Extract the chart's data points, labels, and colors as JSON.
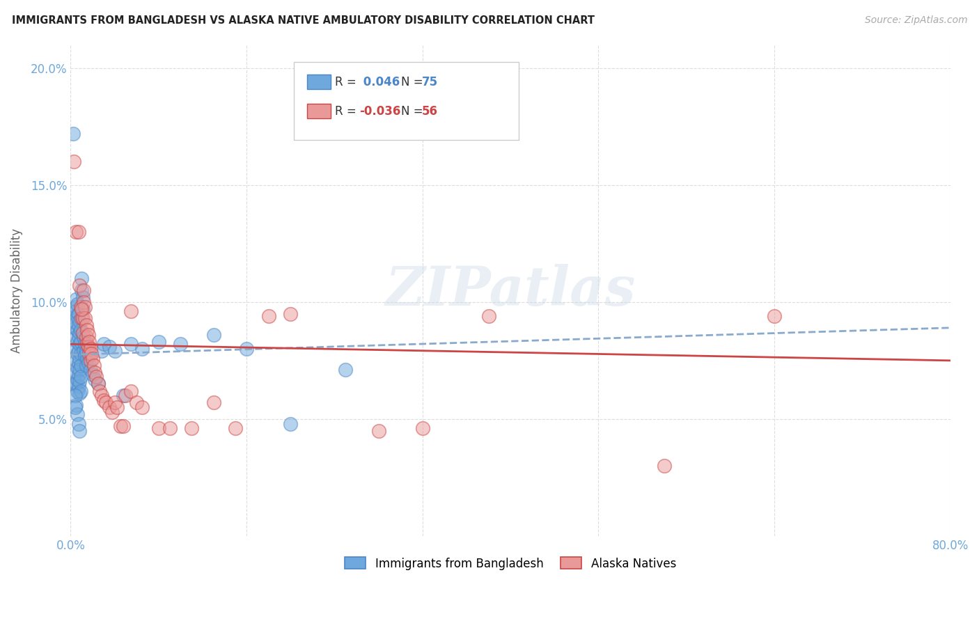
{
  "title": "IMMIGRANTS FROM BANGLADESH VS ALASKA NATIVE AMBULATORY DISABILITY CORRELATION CHART",
  "source": "Source: ZipAtlas.com",
  "ylabel": "Ambulatory Disability",
  "xlim": [
    0.0,
    0.8
  ],
  "ylim": [
    0.0,
    0.21
  ],
  "yticks": [
    0.05,
    0.1,
    0.15,
    0.2
  ],
  "ytick_labels": [
    "5.0%",
    "10.0%",
    "15.0%",
    "20.0%"
  ],
  "xticks": [
    0.0,
    0.16,
    0.32,
    0.48,
    0.64,
    0.8
  ],
  "xtick_labels": [
    "0.0%",
    "",
    "",
    "",
    "",
    "80.0%"
  ],
  "grid_color": "#dddddd",
  "watermark": "ZIPatlas",
  "blue_color": "#6fa8dc",
  "pink_color": "#ea9999",
  "blue_edge_color": "#4a86c8",
  "pink_edge_color": "#cc4444",
  "blue_line_color": "#4a86c8",
  "pink_line_color": "#cc4444",
  "blue_dash_color": "#88aacc",
  "title_color": "#222222",
  "source_color": "#aaaaaa",
  "axis_tick_color": "#6fa8dc",
  "blue_trend": [
    0.0,
    0.0775,
    0.8,
    0.089
  ],
  "pink_trend": [
    0.0,
    0.082,
    0.8,
    0.075
  ],
  "blue_scatter": [
    [
      0.002,
      0.172
    ],
    [
      0.003,
      0.065
    ],
    [
      0.004,
      0.098
    ],
    [
      0.004,
      0.094
    ],
    [
      0.004,
      0.089
    ],
    [
      0.005,
      0.101
    ],
    [
      0.005,
      0.096
    ],
    [
      0.005,
      0.091
    ],
    [
      0.005,
      0.085
    ],
    [
      0.005,
      0.08
    ],
    [
      0.005,
      0.075
    ],
    [
      0.005,
      0.07
    ],
    [
      0.005,
      0.065
    ],
    [
      0.006,
      0.099
    ],
    [
      0.006,
      0.094
    ],
    [
      0.006,
      0.088
    ],
    [
      0.006,
      0.083
    ],
    [
      0.006,
      0.078
    ],
    [
      0.006,
      0.072
    ],
    [
      0.006,
      0.067
    ],
    [
      0.006,
      0.062
    ],
    [
      0.007,
      0.095
    ],
    [
      0.007,
      0.09
    ],
    [
      0.007,
      0.085
    ],
    [
      0.007,
      0.079
    ],
    [
      0.007,
      0.074
    ],
    [
      0.007,
      0.069
    ],
    [
      0.007,
      0.064
    ],
    [
      0.008,
      0.092
    ],
    [
      0.008,
      0.087
    ],
    [
      0.008,
      0.082
    ],
    [
      0.008,
      0.076
    ],
    [
      0.008,
      0.071
    ],
    [
      0.008,
      0.066
    ],
    [
      0.008,
      0.061
    ],
    [
      0.009,
      0.088
    ],
    [
      0.009,
      0.083
    ],
    [
      0.009,
      0.078
    ],
    [
      0.009,
      0.073
    ],
    [
      0.009,
      0.068
    ],
    [
      0.009,
      0.062
    ],
    [
      0.01,
      0.11
    ],
    [
      0.01,
      0.105
    ],
    [
      0.011,
      0.102
    ],
    [
      0.011,
      0.097
    ],
    [
      0.012,
      0.085
    ],
    [
      0.012,
      0.079
    ],
    [
      0.013,
      0.082
    ],
    [
      0.013,
      0.077
    ],
    [
      0.014,
      0.079
    ],
    [
      0.014,
      0.073
    ],
    [
      0.015,
      0.076
    ],
    [
      0.016,
      0.074
    ],
    [
      0.018,
      0.071
    ],
    [
      0.02,
      0.069
    ],
    [
      0.022,
      0.067
    ],
    [
      0.025,
      0.065
    ],
    [
      0.028,
      0.079
    ],
    [
      0.03,
      0.082
    ],
    [
      0.035,
      0.081
    ],
    [
      0.04,
      0.079
    ],
    [
      0.048,
      0.06
    ],
    [
      0.055,
      0.082
    ],
    [
      0.065,
      0.08
    ],
    [
      0.08,
      0.083
    ],
    [
      0.1,
      0.082
    ],
    [
      0.13,
      0.086
    ],
    [
      0.16,
      0.08
    ],
    [
      0.2,
      0.048
    ],
    [
      0.25,
      0.071
    ],
    [
      0.005,
      0.056
    ],
    [
      0.006,
      0.052
    ],
    [
      0.007,
      0.048
    ],
    [
      0.008,
      0.045
    ],
    [
      0.004,
      0.06
    ],
    [
      0.004,
      0.055
    ]
  ],
  "pink_scatter": [
    [
      0.003,
      0.16
    ],
    [
      0.005,
      0.13
    ],
    [
      0.007,
      0.13
    ],
    [
      0.008,
      0.107
    ],
    [
      0.009,
      0.098
    ],
    [
      0.01,
      0.093
    ],
    [
      0.011,
      0.093
    ],
    [
      0.011,
      0.087
    ],
    [
      0.012,
      0.105
    ],
    [
      0.012,
      0.1
    ],
    [
      0.013,
      0.098
    ],
    [
      0.013,
      0.093
    ],
    [
      0.014,
      0.09
    ],
    [
      0.014,
      0.085
    ],
    [
      0.015,
      0.088
    ],
    [
      0.015,
      0.082
    ],
    [
      0.016,
      0.086
    ],
    [
      0.016,
      0.081
    ],
    [
      0.017,
      0.083
    ],
    [
      0.017,
      0.078
    ],
    [
      0.018,
      0.08
    ],
    [
      0.018,
      0.075
    ],
    [
      0.019,
      0.078
    ],
    [
      0.02,
      0.076
    ],
    [
      0.021,
      0.073
    ],
    [
      0.022,
      0.07
    ],
    [
      0.023,
      0.068
    ],
    [
      0.025,
      0.065
    ],
    [
      0.026,
      0.062
    ],
    [
      0.028,
      0.06
    ],
    [
      0.03,
      0.058
    ],
    [
      0.032,
      0.057
    ],
    [
      0.035,
      0.055
    ],
    [
      0.038,
      0.053
    ],
    [
      0.04,
      0.057
    ],
    [
      0.042,
      0.055
    ],
    [
      0.045,
      0.047
    ],
    [
      0.048,
      0.047
    ],
    [
      0.05,
      0.06
    ],
    [
      0.055,
      0.062
    ],
    [
      0.06,
      0.057
    ],
    [
      0.065,
      0.055
    ],
    [
      0.08,
      0.046
    ],
    [
      0.09,
      0.046
    ],
    [
      0.11,
      0.046
    ],
    [
      0.13,
      0.057
    ],
    [
      0.15,
      0.046
    ],
    [
      0.18,
      0.094
    ],
    [
      0.2,
      0.095
    ],
    [
      0.28,
      0.045
    ],
    [
      0.32,
      0.046
    ],
    [
      0.38,
      0.094
    ],
    [
      0.54,
      0.03
    ],
    [
      0.64,
      0.094
    ],
    [
      0.01,
      0.097
    ],
    [
      0.055,
      0.096
    ]
  ]
}
